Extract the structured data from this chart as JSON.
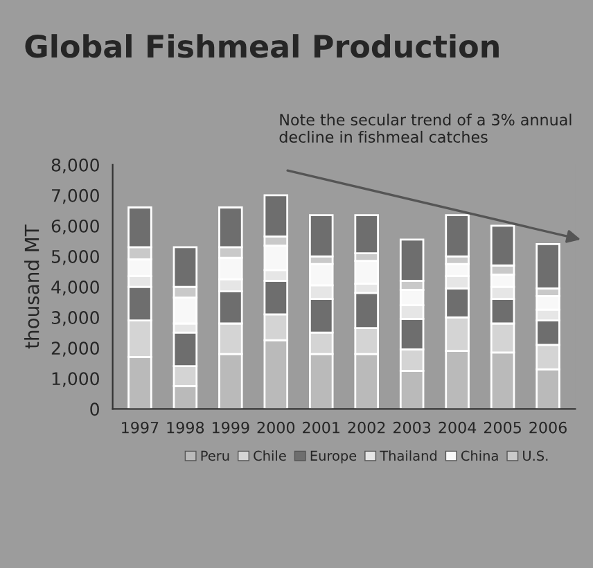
{
  "chart_data": {
    "type": "bar",
    "stacked": true,
    "title": "Global Fishmeal Production",
    "ylabel": "thousand MT",
    "categories": [
      "1997",
      "1998",
      "1999",
      "2000",
      "2001",
      "2002",
      "2003",
      "2004",
      "2005",
      "2006"
    ],
    "series": [
      {
        "name": "Peru",
        "color": "#bababa",
        "values": [
          1700,
          750,
          1800,
          2250,
          1800,
          1800,
          1250,
          1900,
          1850,
          1300
        ]
      },
      {
        "name": "Chile",
        "color": "#d4d4d4",
        "values": [
          1200,
          650,
          1000,
          850,
          700,
          850,
          700,
          1100,
          950,
          800
        ]
      },
      {
        "name": "Europe",
        "color": "#6e6e6e",
        "values": [
          1100,
          1100,
          1050,
          1100,
          1100,
          1150,
          1000,
          950,
          800,
          800
        ]
      },
      {
        "name": "Thailand",
        "color": "#e6e6e6",
        "values": [
          350,
          300,
          400,
          350,
          450,
          300,
          450,
          400,
          400,
          350
        ]
      },
      {
        "name": "China",
        "color": "#f8f8f8",
        "values": [
          550,
          850,
          700,
          800,
          700,
          750,
          500,
          400,
          400,
          450
        ]
      },
      {
        "name": "U.S.",
        "color": "#c9c9c9",
        "values": [
          400,
          350,
          350,
          300,
          250,
          250,
          300,
          250,
          300,
          250
        ]
      },
      {
        "color": "#6e6e6e",
        "values": [
          1300,
          1300,
          1300,
          1350,
          1350,
          1250,
          1350,
          1350,
          1300,
          1450
        ]
      }
    ],
    "ylim": [
      0,
      8000
    ],
    "yticks": [
      {
        "value": 0,
        "label": "0"
      },
      {
        "value": 1000,
        "label": "1,000"
      },
      {
        "value": 2000,
        "label": "2,000"
      },
      {
        "value": 3000,
        "label": "3,000"
      },
      {
        "value": 4000,
        "label": "4,000"
      },
      {
        "value": 5000,
        "label": "5,000"
      },
      {
        "value": 6000,
        "label": "6,000"
      },
      {
        "value": 7000,
        "label": "7,000"
      },
      {
        "value": 8000,
        "label": "8,000"
      }
    ],
    "annotations": [
      "Note the secular trend of a 3% annual decline in fishmeal catches"
    ],
    "legend": "bottom",
    "grid": false
  }
}
